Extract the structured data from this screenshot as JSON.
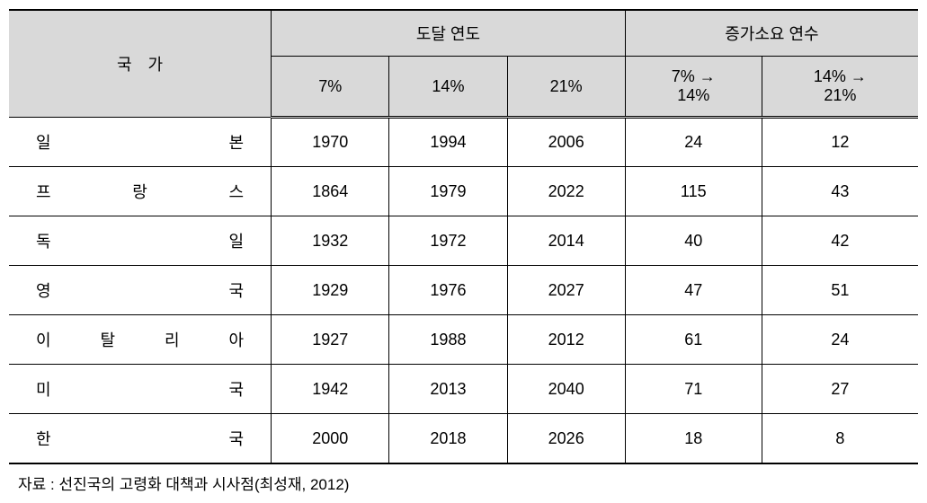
{
  "headers": {
    "country": "국　가",
    "reach_year": "도달 연도",
    "increase_years": "증가소요 연수",
    "pct7": "7%",
    "pct14": "14%",
    "pct21": "21%",
    "range_7_14": "7% →\n14%",
    "range_14_21": "14% →\n21%"
  },
  "rows": [
    {
      "country_chars": [
        "일",
        "본"
      ],
      "pct7": "1970",
      "pct14": "1994",
      "pct21": "2006",
      "r7_14": "24",
      "r14_21": "12"
    },
    {
      "country_chars": [
        "프",
        "랑",
        "스"
      ],
      "pct7": "1864",
      "pct14": "1979",
      "pct21": "2022",
      "r7_14": "115",
      "r14_21": "43"
    },
    {
      "country_chars": [
        "독",
        "일"
      ],
      "pct7": "1932",
      "pct14": "1972",
      "pct21": "2014",
      "r7_14": "40",
      "r14_21": "42"
    },
    {
      "country_chars": [
        "영",
        "국"
      ],
      "pct7": "1929",
      "pct14": "1976",
      "pct21": "2027",
      "r7_14": "47",
      "r14_21": "51"
    },
    {
      "country_chars": [
        "이",
        "탈",
        "리",
        "아"
      ],
      "pct7": "1927",
      "pct14": "1988",
      "pct21": "2012",
      "r7_14": "61",
      "r14_21": "24"
    },
    {
      "country_chars": [
        "미",
        "국"
      ],
      "pct7": "1942",
      "pct14": "2013",
      "pct21": "2040",
      "r7_14": "71",
      "r14_21": "27"
    },
    {
      "country_chars": [
        "한",
        "국"
      ],
      "pct7": "2000",
      "pct14": "2018",
      "pct21": "2026",
      "r7_14": "18",
      "r14_21": "8"
    }
  ],
  "source": "자료 : 선진국의 고령화 대책과 시사점(최성재, 2012)",
  "styling": {
    "header_bg": "#d9d9d9",
    "border_color": "#000000",
    "font_size": 18
  }
}
